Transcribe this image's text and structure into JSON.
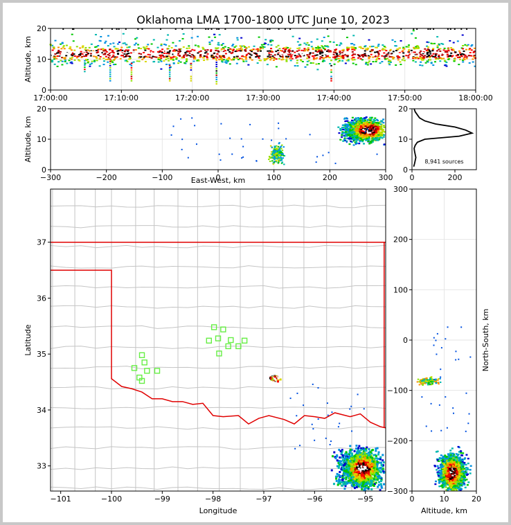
{
  "title": "Oklahoma LMA 1700-1800 UTC June 10, 2023",
  "chart_data": [
    {
      "panel": "altitude-time",
      "type": "scatter",
      "ylabel": "Altitude, km",
      "xlim": [
        "17:00:00",
        "18:00:00"
      ],
      "ylim": [
        0,
        20
      ],
      "x_ticks": [
        "17:00:00",
        "17:10:00",
        "17:20:00",
        "17:30:00",
        "17:40:00",
        "17:50:00",
        "18:00:00"
      ],
      "y_ticks": [
        "0",
        "10",
        "20"
      ],
      "grid": true
    },
    {
      "panel": "altitude-eastwest",
      "type": "scatter",
      "xlabel": "East-West, km",
      "ylabel": "Altitude, km",
      "xlim": [
        -300,
        300
      ],
      "ylim": [
        0,
        20
      ],
      "x_ticks": [
        "−300",
        "−200",
        "−100",
        "0",
        "100",
        "200",
        "300"
      ],
      "y_ticks": [
        "0",
        "10",
        "20"
      ],
      "grid": true
    },
    {
      "panel": "altitude-histogram",
      "type": "line",
      "xlim": [
        0,
        300
      ],
      "ylim": [
        0,
        20
      ],
      "x_ticks": [
        "0",
        "200"
      ],
      "y_ticks": [
        "0",
        "10",
        "20"
      ],
      "annotation": "8,941 sources",
      "profile": {
        "altitude": [
          1,
          2,
          3,
          4,
          5,
          6,
          7,
          8,
          9,
          10,
          11,
          12,
          13,
          14,
          15,
          16,
          17,
          18,
          19,
          20
        ],
        "count": [
          8,
          12,
          15,
          18,
          15,
          12,
          10,
          15,
          25,
          60,
          220,
          280,
          250,
          200,
          110,
          60,
          35,
          25,
          15,
          10
        ]
      }
    },
    {
      "panel": "plan-view",
      "type": "scatter",
      "xlabel": "Longitude",
      "ylabel": "Latitude",
      "xlim": [
        -101.2,
        -94.6
      ],
      "ylim": [
        32.55,
        37.95
      ],
      "x_ticks": [
        "−101",
        "−100",
        "−99",
        "−98",
        "−97",
        "−96",
        "−95"
      ],
      "y_ticks": [
        "33",
        "34",
        "35",
        "36",
        "37"
      ],
      "stations": {
        "lon": [
          -99.4,
          -99.35,
          -99.55,
          -99.3,
          -99.45,
          -99.1,
          -99.4,
          -97.98,
          -97.8,
          -98.08,
          -97.9,
          -97.65,
          -97.7,
          -97.5,
          -97.38,
          -97.88
        ],
        "lat": [
          34.98,
          34.85,
          34.75,
          34.7,
          34.58,
          34.7,
          34.52,
          35.48,
          35.44,
          35.24,
          35.28,
          35.25,
          35.14,
          35.14,
          35.24,
          35.01
        ]
      }
    },
    {
      "panel": "north-south-altitude",
      "type": "scatter",
      "xlabel": "Altitude, km",
      "ylabel": "North-South, km",
      "xlim": [
        0,
        20
      ],
      "ylim": [
        -300,
        300
      ],
      "x_ticks": [
        "0",
        "10",
        "20"
      ],
      "y_ticks": [
        "−300",
        "−200",
        "−100",
        "0",
        "100",
        "200",
        "300"
      ],
      "grid": true
    }
  ]
}
